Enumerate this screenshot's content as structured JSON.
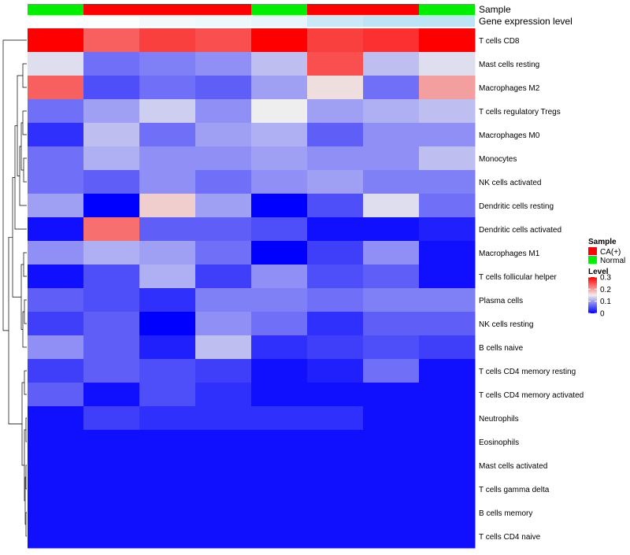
{
  "chart_data": {
    "type": "heatmap",
    "title": "",
    "annotation_labels": [
      "Sample",
      "Gene expression level"
    ],
    "sample_groups": [
      "Normal",
      "CA(+)",
      "CA(+)",
      "CA(+)",
      "Normal",
      "CA(+)",
      "CA(+)",
      "Normal"
    ],
    "gene_expression_level": [
      0.02,
      0.03,
      0.12,
      0.15,
      0.2,
      0.45,
      0.55,
      0.55
    ],
    "rows": [
      "T cells CD8",
      "Mast cells resting",
      "Macrophages M2",
      "T cells regulatory  Tregs",
      "Macrophages M0",
      "Monocytes",
      "NK cells activated",
      "Dendritic cells resting",
      "Dendritic cells activated",
      "Macrophages M1",
      "T cells follicular helper",
      "Plasma cells",
      "NK cells resting",
      "B cells naive",
      "T cells CD4 memory resting",
      "T cells CD4 memory activated",
      "Neutrophils",
      "Eosinophils",
      "Mast cells activated",
      "T cells gamma delta",
      "B cells memory",
      "T cells CD4 naive"
    ],
    "values": [
      [
        0.3,
        0.24,
        0.26,
        0.25,
        0.3,
        0.26,
        0.27,
        0.3
      ],
      [
        0.14,
        0.07,
        0.08,
        0.09,
        0.12,
        0.25,
        0.12,
        0.14
      ],
      [
        0.24,
        0.05,
        0.07,
        0.06,
        0.1,
        0.16,
        0.07,
        0.2
      ],
      [
        0.07,
        0.1,
        0.13,
        0.09,
        0.15,
        0.1,
        0.11,
        0.12
      ],
      [
        0.03,
        0.12,
        0.07,
        0.1,
        0.11,
        0.06,
        0.09,
        0.09
      ],
      [
        0.07,
        0.11,
        0.09,
        0.09,
        0.1,
        0.09,
        0.09,
        0.12
      ],
      [
        0.07,
        0.06,
        0.09,
        0.07,
        0.09,
        0.1,
        0.08,
        0.08
      ],
      [
        0.1,
        0.0,
        0.17,
        0.1,
        0.0,
        0.05,
        0.14,
        0.07
      ],
      [
        0.01,
        0.23,
        0.06,
        0.06,
        0.05,
        0.01,
        0.01,
        0.02
      ],
      [
        0.09,
        0.11,
        0.1,
        0.07,
        0.0,
        0.04,
        0.09,
        0.01
      ],
      [
        0.01,
        0.05,
        0.11,
        0.04,
        0.09,
        0.05,
        0.06,
        0.01
      ],
      [
        0.06,
        0.05,
        0.03,
        0.08,
        0.08,
        0.07,
        0.08,
        0.08
      ],
      [
        0.04,
        0.06,
        0.0,
        0.09,
        0.07,
        0.03,
        0.06,
        0.06
      ],
      [
        0.09,
        0.06,
        0.02,
        0.12,
        0.03,
        0.04,
        0.05,
        0.04
      ],
      [
        0.04,
        0.06,
        0.05,
        0.04,
        0.01,
        0.02,
        0.07,
        0.01
      ],
      [
        0.06,
        0.01,
        0.05,
        0.03,
        0.01,
        0.01,
        0.01,
        0.01
      ],
      [
        0.01,
        0.04,
        0.03,
        0.03,
        0.03,
        0.03,
        0.01,
        0.01
      ],
      [
        0.01,
        0.01,
        0.01,
        0.01,
        0.01,
        0.01,
        0.01,
        0.01
      ],
      [
        0.01,
        0.01,
        0.01,
        0.01,
        0.01,
        0.01,
        0.01,
        0.01
      ],
      [
        0.01,
        0.01,
        0.01,
        0.01,
        0.01,
        0.01,
        0.01,
        0.01
      ],
      [
        0.01,
        0.01,
        0.01,
        0.01,
        0.01,
        0.01,
        0.01,
        0.01
      ],
      [
        0.01,
        0.01,
        0.01,
        0.01,
        0.01,
        0.01,
        0.01,
        0.01
      ]
    ],
    "color_scale": {
      "min": 0,
      "max": 0.3,
      "low": "#0000ff",
      "mid": "#eeeeee",
      "high": "#ff0000",
      "mid_value": 0.15
    },
    "expression_scale": {
      "low": "#ffffff",
      "high": "#87ceeb"
    },
    "legend": {
      "sample_title": "Sample",
      "sample_items": [
        {
          "label": "CA(+)",
          "color": "#ff0000"
        },
        {
          "label": "Normal",
          "color": "#00ee00"
        }
      ],
      "level_title": "Level",
      "level_ticks": [
        "0.3",
        "0.2",
        "0.1",
        "0"
      ],
      "level_tick_values": [
        0.3,
        0.2,
        0.1,
        0
      ]
    },
    "dendrogram": "rows"
  }
}
